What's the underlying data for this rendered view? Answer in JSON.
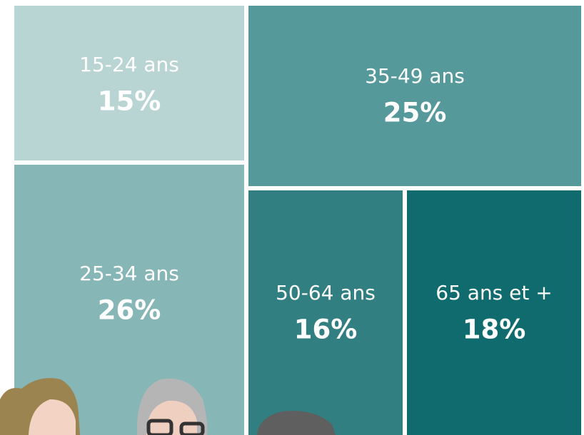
{
  "chart_data": {
    "type": "treemap",
    "categories": [
      "15-24 ans",
      "25-34 ans",
      "35-49 ans",
      "50-64 ans",
      "65 ans et +"
    ],
    "values": [
      15,
      26,
      25,
      16,
      18
    ],
    "value_labels": [
      "15%",
      "26%",
      "25%",
      "16%",
      "18%"
    ],
    "colors": [
      "#b8d4d3",
      "#86b6b6",
      "#56999b",
      "#327f82",
      "#0f6b6e"
    ]
  }
}
